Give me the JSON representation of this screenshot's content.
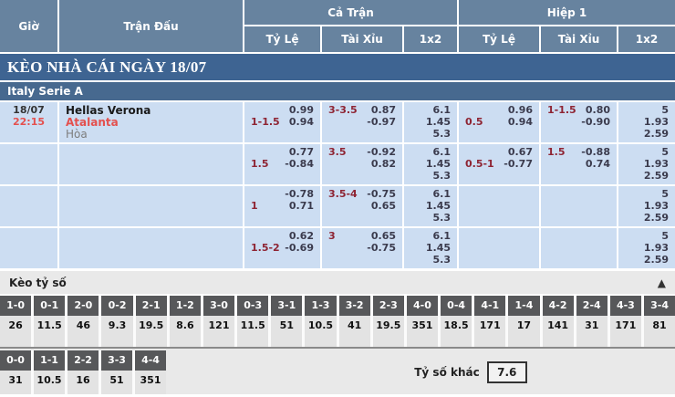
{
  "header": {
    "col_time": "Giờ",
    "col_match": "Trận Đấu",
    "group_full": "Cả Trận",
    "group_half": "Hiệp 1",
    "sub_handicap_full": "Tỷ Lệ",
    "sub_ou_full": "Tài Xỉu",
    "sub_1x2_full": "1x2",
    "sub_handicap_half": "Tỷ Lệ",
    "sub_ou_half": "Tài Xỉu",
    "sub_1x2_half": "1x2"
  },
  "banner_title": "KÈO NHÀ CÁI NGÀY 18/07",
  "league_name": "Italy Serie A",
  "odds_rows": [
    {
      "date": "18/07",
      "time": "22:15",
      "home": "Hellas Verona",
      "away": "Atalanta",
      "draw": "Hòa",
      "ft_hdp_line": "1-1.5",
      "ft_hdp_over": "0.99",
      "ft_hdp_under": "0.94",
      "ft_ou_line": "3-3.5",
      "ft_ou_over": "0.87",
      "ft_ou_under": "-0.97",
      "ft_1": "6.1",
      "ft_x": "1.45",
      "ft_2": "5.3",
      "h1_hdp_line": "0.5",
      "h1_hdp_over": "0.96",
      "h1_hdp_under": "0.94",
      "h1_ou_line": "1-1.5",
      "h1_ou_over": "0.80",
      "h1_ou_under": "-0.90",
      "h1_1": "5",
      "h1_x": "1.93",
      "h1_2": "2.59"
    },
    {
      "date": "",
      "time": "",
      "home": "",
      "away": "",
      "draw": "",
      "ft_hdp_line": "1.5",
      "ft_hdp_over": "0.77",
      "ft_hdp_under": "-0.84",
      "ft_ou_line": "3.5",
      "ft_ou_over": "-0.92",
      "ft_ou_under": "0.82",
      "ft_1": "6.1",
      "ft_x": "1.45",
      "ft_2": "5.3",
      "h1_hdp_line": "0.5-1",
      "h1_hdp_over": "0.67",
      "h1_hdp_under": "-0.77",
      "h1_ou_line": "1.5",
      "h1_ou_over": "-0.88",
      "h1_ou_under": "0.74",
      "h1_1": "5",
      "h1_x": "1.93",
      "h1_2": "2.59"
    },
    {
      "date": "",
      "time": "",
      "home": "",
      "away": "",
      "draw": "",
      "ft_hdp_line": "1",
      "ft_hdp_over": "-0.78",
      "ft_hdp_under": "0.71",
      "ft_ou_line": "3.5-4",
      "ft_ou_over": "-0.75",
      "ft_ou_under": "0.65",
      "ft_1": "6.1",
      "ft_x": "1.45",
      "ft_2": "5.3",
      "h1_hdp_line": "",
      "h1_hdp_over": "",
      "h1_hdp_under": "",
      "h1_ou_line": "",
      "h1_ou_over": "",
      "h1_ou_under": "",
      "h1_1": "5",
      "h1_x": "1.93",
      "h1_2": "2.59"
    },
    {
      "date": "",
      "time": "",
      "home": "",
      "away": "",
      "draw": "",
      "ft_hdp_line": "1.5-2",
      "ft_hdp_over": "0.62",
      "ft_hdp_under": "-0.69",
      "ft_ou_line": "3",
      "ft_ou_over": "0.65",
      "ft_ou_under": "-0.75",
      "ft_1": "6.1",
      "ft_x": "1.45",
      "ft_2": "5.3",
      "h1_hdp_line": "",
      "h1_hdp_over": "",
      "h1_hdp_under": "",
      "h1_ou_line": "",
      "h1_ou_over": "",
      "h1_ou_under": "",
      "h1_1": "5",
      "h1_x": "1.93",
      "h1_2": "2.59"
    }
  ],
  "score_section": {
    "title": "Kèo tỷ số",
    "collapse_icon": "▲",
    "row1": [
      {
        "score": "1-0",
        "odds": "26"
      },
      {
        "score": "0-1",
        "odds": "11.5"
      },
      {
        "score": "2-0",
        "odds": "46"
      },
      {
        "score": "0-2",
        "odds": "9.3"
      },
      {
        "score": "2-1",
        "odds": "19.5"
      },
      {
        "score": "1-2",
        "odds": "8.6"
      },
      {
        "score": "3-0",
        "odds": "121"
      },
      {
        "score": "0-3",
        "odds": "11.5"
      },
      {
        "score": "3-1",
        "odds": "51"
      },
      {
        "score": "1-3",
        "odds": "10.5"
      },
      {
        "score": "3-2",
        "odds": "41"
      },
      {
        "score": "2-3",
        "odds": "19.5"
      },
      {
        "score": "4-0",
        "odds": "351"
      },
      {
        "score": "0-4",
        "odds": "18.5"
      },
      {
        "score": "4-1",
        "odds": "171"
      },
      {
        "score": "1-4",
        "odds": "17"
      },
      {
        "score": "4-2",
        "odds": "141"
      },
      {
        "score": "2-4",
        "odds": "31"
      },
      {
        "score": "4-3",
        "odds": "171"
      },
      {
        "score": "3-4",
        "odds": "81"
      }
    ],
    "row2": [
      {
        "score": "0-0",
        "odds": "31"
      },
      {
        "score": "1-1",
        "odds": "10.5"
      },
      {
        "score": "2-2",
        "odds": "16"
      },
      {
        "score": "3-3",
        "odds": "51"
      },
      {
        "score": "4-4",
        "odds": "351"
      }
    ],
    "other_label": "Tỷ số khác",
    "other_value": "7.6"
  }
}
